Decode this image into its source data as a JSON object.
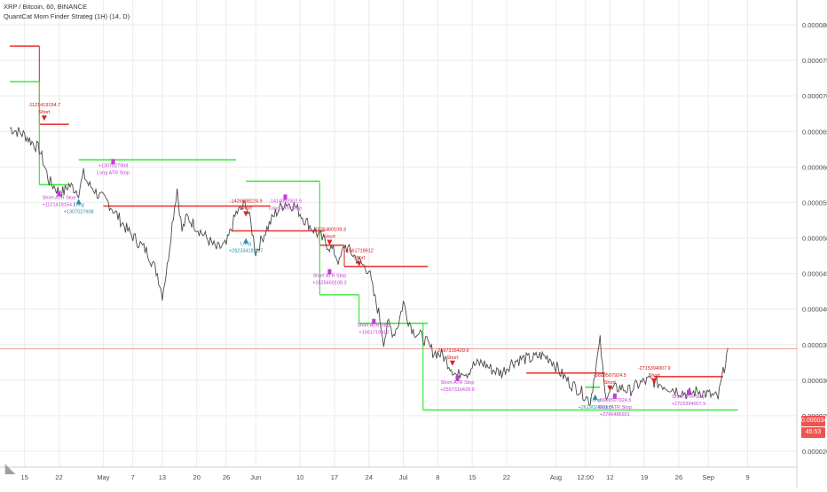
{
  "header": {
    "symbol_line": "XRP / Bitcoin, 60, BINANCE",
    "indicator_line": "QuantCat Mom Finder Strateg (1H) (14, D)"
  },
  "price_badges": {
    "last_price": "0.00003443",
    "countdown": "45:53"
  },
  "colors": {
    "price_line": "#4a4a4a",
    "short_level": "#ef3b3b",
    "long_level": "#3ee63e",
    "short_label": "#d10f0f",
    "long_label": "#1f8fa8",
    "stop_label": "#c23cd6",
    "last_price": "#ef5350",
    "axis_text": "#4a4a4a",
    "grid": "#ececec"
  },
  "chart_data": {
    "type": "line",
    "title": "XRP / Bitcoin, 60, BINANCE",
    "ylim": [
      1.8e-05,
      8.5e-05
    ],
    "yaxis_ticks": [
      {
        "label": "0.00002000",
        "value": 2e-05
      },
      {
        "label": "0.00002500",
        "value": 2.5e-05
      },
      {
        "label": "0.00003000",
        "value": 3e-05
      },
      {
        "label": "0.00003500",
        "value": 3.5e-05
      },
      {
        "label": "0.00004000",
        "value": 4e-05
      },
      {
        "label": "0.00004500",
        "value": 4.5e-05
      },
      {
        "label": "0.00005000",
        "value": 5e-05
      },
      {
        "label": "0.00005500",
        "value": 5.5e-05
      },
      {
        "label": "0.00006000",
        "value": 6e-05
      },
      {
        "label": "0.00006500",
        "value": 6.5e-05
      },
      {
        "label": "0.00007000",
        "value": 7e-05
      },
      {
        "label": "0.00007500",
        "value": 7.5e-05
      },
      {
        "label": "0.00008000",
        "value": 8e-05
      }
    ],
    "xaxis_ticks": [
      {
        "label": "15",
        "t": 3
      },
      {
        "label": "22",
        "t": 10
      },
      {
        "label": "May",
        "t": 19
      },
      {
        "label": "7",
        "t": 25
      },
      {
        "label": "13",
        "t": 31
      },
      {
        "label": "20",
        "t": 38
      },
      {
        "label": "26",
        "t": 44
      },
      {
        "label": "Jun",
        "t": 50
      },
      {
        "label": "10",
        "t": 59
      },
      {
        "label": "17",
        "t": 66
      },
      {
        "label": "24",
        "t": 73
      },
      {
        "label": "Jul",
        "t": 80
      },
      {
        "label": "8",
        "t": 87
      },
      {
        "label": "15",
        "t": 94
      },
      {
        "label": "22",
        "t": 101
      },
      {
        "label": "Aug",
        "t": 111
      },
      {
        "label": "12:00",
        "t": 117
      },
      {
        "label": "12",
        "t": 122
      },
      {
        "label": "19",
        "t": 129
      },
      {
        "label": "26",
        "t": 136
      },
      {
        "label": "Sep",
        "t": 142
      },
      {
        "label": "9",
        "t": 150
      }
    ],
    "last_price": 3.443e-05,
    "series": [
      {
        "t": [
          0,
          3,
          6,
          8,
          10,
          11,
          12,
          14,
          15,
          16,
          17,
          18,
          20,
          22,
          24,
          26,
          28,
          30,
          31,
          32,
          33,
          34,
          35,
          36,
          38,
          40,
          42,
          44,
          46,
          47,
          48,
          49,
          50,
          52,
          54,
          56,
          58,
          60,
          62,
          64,
          66,
          67,
          68,
          70,
          72,
          73,
          74,
          75,
          76,
          77,
          78,
          79,
          80,
          81,
          82,
          84,
          86,
          88,
          90,
          91,
          92,
          93,
          94,
          96,
          98,
          100,
          102,
          104,
          106,
          108,
          110,
          112,
          114,
          116,
          118,
          120,
          121,
          122,
          124,
          126,
          128,
          130,
          132,
          134,
          136,
          138,
          140,
          142,
          144,
          146
        ],
        "values": [
          6.55e-05,
          6.45e-05,
          6.25e-05,
          5.8e-05,
          5.65e-05,
          5.65e-05,
          5.75e-05,
          5.65e-05,
          5.9e-05,
          5.75e-05,
          5.7e-05,
          5.6e-05,
          5.5e-05,
          5.3e-05,
          5.1e-05,
          4.95e-05,
          4.8e-05,
          4.5e-05,
          4.2e-05,
          4.6e-05,
          5.2e-05,
          5.7e-05,
          5.1e-05,
          5.3e-05,
          5.15e-05,
          5e-05,
          4.85e-05,
          4.9e-05,
          5.35e-05,
          5.4e-05,
          5.5e-05,
          5.2e-05,
          4.8e-05,
          5.1e-05,
          5.35e-05,
          5.5e-05,
          5.45e-05,
          5.25e-05,
          5.1e-05,
          4.95e-05,
          4.8e-05,
          4.65e-05,
          4.9e-05,
          4.75e-05,
          4.6e-05,
          4.55e-05,
          4.2e-05,
          3.95e-05,
          3.55e-05,
          3.8e-05,
          3.65e-05,
          3.8e-05,
          4.1e-05,
          3.85e-05,
          3.7e-05,
          3.6e-05,
          3.4e-05,
          3.35e-05,
          3.15e-05,
          3.05e-05,
          3.15e-05,
          3.1e-05,
          3.2e-05,
          3.25e-05,
          3.15e-05,
          3.1e-05,
          3.25e-05,
          3.3e-05,
          3.3e-05,
          3.35e-05,
          3.3e-05,
          3.1e-05,
          2.95e-05,
          2.85e-05,
          2.7e-05,
          3.55e-05,
          2.8e-05,
          2.85e-05,
          2.9e-05,
          2.85e-05,
          2.95e-05,
          3e-05,
          2.95e-05,
          2.9e-05,
          2.85e-05,
          2.8e-05,
          2.85e-05,
          2.8e-05,
          2.75e-05,
          3.45e-05
        ]
      }
    ],
    "short_levels": [
      {
        "x0": 0,
        "x1": 6,
        "y": 7.7e-05
      },
      {
        "x0": 6,
        "x1": 12,
        "y": 6.6e-05
      },
      {
        "x0": 19,
        "x1": 53,
        "y": 5.45e-05
      },
      {
        "x0": 45,
        "x1": 64,
        "y": 5.1e-05
      },
      {
        "x0": 63,
        "x1": 68,
        "y": 4.9e-05
      },
      {
        "x0": 68,
        "x1": 85,
        "y": 4.6e-05
      },
      {
        "x0": 105,
        "x1": 121,
        "y": 3.1e-05
      },
      {
        "x0": 131,
        "x1": 145,
        "y": 3.05e-05
      }
    ],
    "long_levels": [
      {
        "x0": 0,
        "x1": 6,
        "y": 7.2e-05
      },
      {
        "x0": 6,
        "x1": 12,
        "y": 5.75e-05
      },
      {
        "x0": 14,
        "x1": 46,
        "y": 6.1e-05
      },
      {
        "x0": 48,
        "x1": 63,
        "y": 5.8e-05
      },
      {
        "x0": 63,
        "x1": 71,
        "y": 4.2e-05
      },
      {
        "x0": 71,
        "x1": 85,
        "y": 3.8e-05
      },
      {
        "x0": 84,
        "x1": 148,
        "y": 2.58e-05
      },
      {
        "x0": 117,
        "x1": 120,
        "y": 2.9e-05
      }
    ],
    "annotations": [
      {
        "kind": "short",
        "lines": [
          "-1121419154.7",
          "Short"
        ],
        "t": 7,
        "y": 6.85e-05
      },
      {
        "kind": "stop",
        "lines": [
          "Short ATR Stop",
          "+1121419154.7"
        ],
        "t": 10,
        "y": 5.55e-05
      },
      {
        "kind": "long",
        "lines": [
          "Long",
          "+1307027908"
        ],
        "t": 14,
        "y": 5.45e-05
      },
      {
        "kind": "stop",
        "lines": [
          "+1307027908",
          "Long ATR Stop"
        ],
        "t": 21,
        "y": 6e-05
      },
      {
        "kind": "short",
        "lines": [
          "-1426888224.9",
          "Short"
        ],
        "t": 48,
        "y": 5.5e-05
      },
      {
        "kind": "long",
        "lines": [
          "Long",
          "+2823341825.7"
        ],
        "t": 48,
        "y": 4.9e-05
      },
      {
        "kind": "stop",
        "lines": [
          "-1414052502.9",
          "Long ATR Stop"
        ],
        "t": 56,
        "y": 5.5e-05
      },
      {
        "kind": "short",
        "lines": [
          "-1525460108.3",
          "Short"
        ],
        "t": 65,
        "y": 5.1e-05
      },
      {
        "kind": "short",
        "lines": [
          "-1561719912",
          "Short"
        ],
        "t": 71,
        "y": 4.8e-05
      },
      {
        "kind": "stop",
        "lines": [
          "Short ATR Stop",
          "+1525460108.3"
        ],
        "t": 65,
        "y": 4.45e-05
      },
      {
        "kind": "stop",
        "lines": [
          "Short ATR Stop",
          "+1561719912"
        ],
        "t": 74,
        "y": 3.75e-05
      },
      {
        "kind": "short",
        "lines": [
          "-2597316429.9",
          "Short"
        ],
        "t": 90,
        "y": 3.4e-05
      },
      {
        "kind": "stop",
        "lines": [
          "Short ATR Stop",
          "+2597316429.9"
        ],
        "t": 91,
        "y": 2.95e-05
      },
      {
        "kind": "short",
        "lines": [
          "-5609507924.5",
          "Short"
        ],
        "t": 122,
        "y": 3.05e-05
      },
      {
        "kind": "long",
        "lines": [
          "Long",
          "+2619024921.5"
        ],
        "t": 119,
        "y": 2.7e-05
      },
      {
        "kind": "stop",
        "lines": [
          "-5609507924.5",
          "Short ATR Stop",
          "+2766486921"
        ],
        "t": 123,
        "y": 2.7e-05
      },
      {
        "kind": "short",
        "lines": [
          "-2715394007.9",
          "Short"
        ],
        "t": 131,
        "y": 3.15e-05
      },
      {
        "kind": "stop",
        "lines": [
          "Short ATR Stop",
          "+2715394007.9"
        ],
        "t": 138,
        "y": 2.75e-05
      }
    ]
  }
}
